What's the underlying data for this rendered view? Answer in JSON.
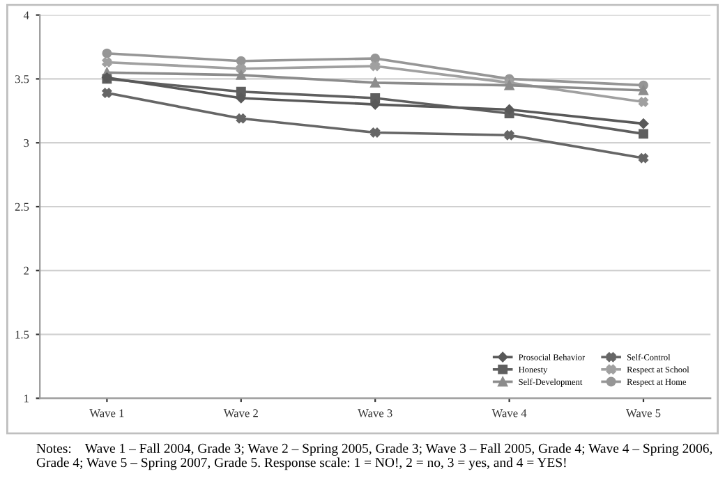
{
  "chart_data": {
    "type": "line",
    "categories": [
      "Wave 1",
      "Wave 2",
      "Wave 3",
      "Wave 4",
      "Wave 5"
    ],
    "series": [
      {
        "name": "Prosocial Behavior",
        "color": "#595959",
        "marker": "diamond",
        "values": [
          3.51,
          3.35,
          3.3,
          3.26,
          3.15
        ]
      },
      {
        "name": "Honesty",
        "color": "#5f5f5f",
        "marker": "square",
        "values": [
          3.5,
          3.4,
          3.35,
          3.23,
          3.07
        ]
      },
      {
        "name": "Self-Development",
        "color": "#8c8c8c",
        "marker": "triangle",
        "values": [
          3.55,
          3.53,
          3.47,
          3.45,
          3.41
        ]
      },
      {
        "name": "Self-Control",
        "color": "#666666",
        "marker": "cross",
        "values": [
          3.39,
          3.19,
          3.08,
          3.06,
          2.88
        ]
      },
      {
        "name": "Respect at School",
        "color": "#a0a0a0",
        "marker": "cross",
        "values": [
          3.63,
          3.58,
          3.6,
          3.47,
          3.32
        ]
      },
      {
        "name": "Respect at Home",
        "color": "#969696",
        "marker": "circle",
        "values": [
          3.7,
          3.64,
          3.66,
          3.5,
          3.45
        ]
      }
    ],
    "ylim": [
      1,
      4
    ],
    "yticks": [
      1,
      1.5,
      2,
      2.5,
      3,
      3.5,
      4
    ],
    "grid": "y",
    "legend": "bottom right",
    "annotations": [
      "Notes:    Wave 1 – Fall 2004, Grade 3; Wave 2 – Spring 2005, Grade 3; Wave 3 – Fall 2005, Grade 4; Wave 4 – Spring 2006, Grade 4; Wave 5 – Spring 2007, Grade 5. Response scale: 1 = NO!, 2 = no, 3 = yes, and 4 = YES!"
    ]
  }
}
